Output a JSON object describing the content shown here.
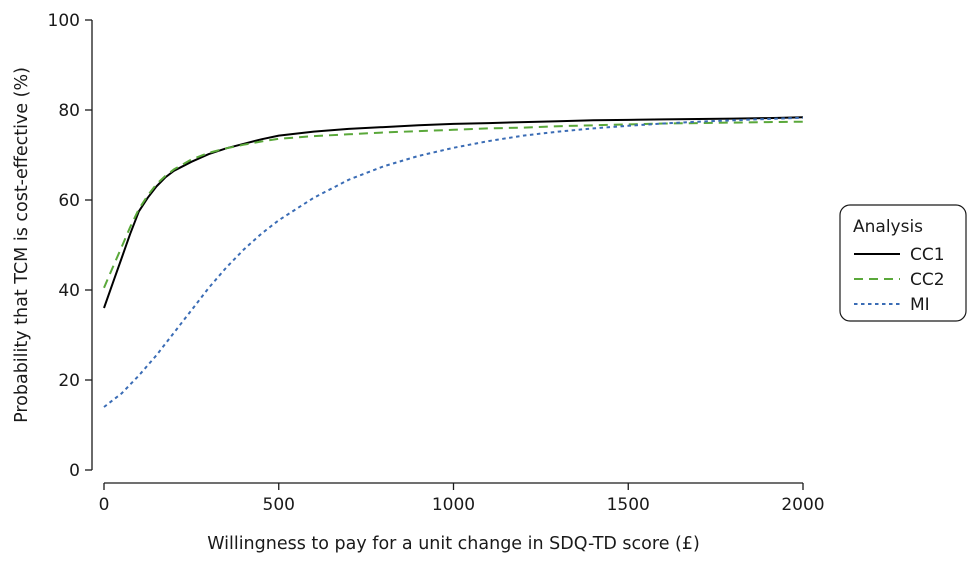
{
  "chart_data": {
    "type": "line",
    "title": "",
    "xlabel": "Willingness to pay for a unit change in SDQ-TD score (£)",
    "ylabel": "Probability that TCM is cost-effective (%)",
    "xlim": [
      0,
      2000
    ],
    "ylim": [
      0,
      100
    ],
    "xticks": [
      0,
      500,
      1000,
      1500,
      2000
    ],
    "yticks": [
      0,
      20,
      40,
      60,
      80,
      100
    ],
    "grid": false,
    "legend": {
      "title": "Analysis",
      "position": "right"
    },
    "series": [
      {
        "name": "CC1",
        "color": "#000000",
        "dash": "solid",
        "x": [
          0,
          25,
          50,
          75,
          100,
          125,
          150,
          175,
          200,
          250,
          300,
          350,
          400,
          450,
          500,
          600,
          700,
          800,
          900,
          1000,
          1100,
          1200,
          1300,
          1400,
          1500,
          1600,
          1700,
          1800,
          1900,
          2000
        ],
        "y": [
          36,
          41.5,
          47,
          52.5,
          57.5,
          60.5,
          63,
          65,
          66.5,
          68.5,
          70.2,
          71.5,
          72.5,
          73.5,
          74.3,
          75.2,
          75.8,
          76.2,
          76.6,
          76.9,
          77.1,
          77.3,
          77.5,
          77.7,
          77.8,
          77.9,
          78,
          78.1,
          78.2,
          78.4
        ]
      },
      {
        "name": "CC2",
        "color": "#5aa83a",
        "dash": "dashed",
        "x": [
          0,
          25,
          50,
          75,
          100,
          125,
          150,
          175,
          200,
          250,
          300,
          350,
          400,
          450,
          500,
          600,
          700,
          800,
          900,
          1000,
          1100,
          1200,
          1300,
          1400,
          1500,
          1600,
          1700,
          1800,
          1900,
          2000
        ],
        "y": [
          40.5,
          45,
          49.5,
          54,
          58,
          61,
          63.5,
          65.3,
          66.8,
          69,
          70.5,
          71.5,
          72.3,
          73,
          73.6,
          74.2,
          74.6,
          75,
          75.3,
          75.6,
          75.9,
          76.1,
          76.4,
          76.6,
          76.8,
          77,
          77.1,
          77.2,
          77.3,
          77.4
        ]
      },
      {
        "name": "MI",
        "color": "#3a6cb5",
        "dash": "dotted",
        "x": [
          0,
          50,
          100,
          150,
          200,
          250,
          300,
          350,
          400,
          450,
          500,
          600,
          700,
          800,
          900,
          1000,
          1100,
          1200,
          1300,
          1400,
          1500,
          1600,
          1700,
          1800,
          1900,
          2000
        ],
        "y": [
          14,
          17,
          21,
          25.5,
          30.5,
          35.5,
          40.5,
          45,
          49,
          52.5,
          55.5,
          60.5,
          64.5,
          67.5,
          69.8,
          71.6,
          73.1,
          74.3,
          75.2,
          75.9,
          76.5,
          77,
          77.4,
          77.7,
          78,
          78.3
        ]
      }
    ]
  }
}
